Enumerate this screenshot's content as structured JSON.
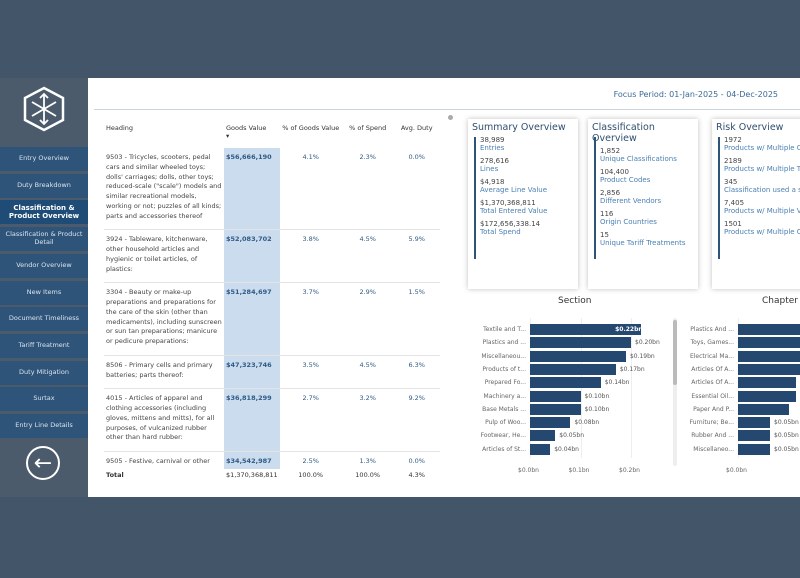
{
  "nav": {
    "items": [
      "Entry Overview",
      "Duty Breakdown",
      "Classification & Product Overview",
      "Classification & Product Detail",
      "Vendor Overview",
      "New Items",
      "Document Timeliness",
      "Tariff Treatment",
      "Duty Mitigation",
      "Surtax",
      "Entry Line Details"
    ],
    "active": 2,
    "back_icon": "arrow-left-circle-icon"
  },
  "header": {
    "focus_period": "Focus Period: 01-Jan-2025 - 04-Dec-2025"
  },
  "table": {
    "columns": [
      "Heading",
      "Goods Value",
      "% of Goods Value",
      "% of Spend",
      "Avg. Duty"
    ],
    "rows": [
      [
        "9503 - Tricycles, scooters, pedal cars and similar wheeled toys; dolls' carriages; dolls, other toys; reduced-scale (\"scale\") models and similar recreational models, working or not; puzzles of all kinds; parts and accessories thereof",
        "$56,666,190",
        "4.1%",
        "2.3%",
        "0.0%"
      ],
      [
        "3924 - Tableware, kitchenware, other household articles and hygienic or toilet articles, of plastics:",
        "$52,083,702",
        "3.8%",
        "4.5%",
        "5.9%"
      ],
      [
        "3304 - Beauty or make-up preparations and preparations for the care of the skin (other than medicaments), including sunscreen or sun tan preparations; manicure or pedicure preparations:",
        "$51,284,697",
        "3.7%",
        "2.9%",
        "1.5%"
      ],
      [
        "8506 - Primary cells and primary batteries; parts thereof:",
        "$47,323,746",
        "3.5%",
        "4.5%",
        "6.3%"
      ],
      [
        "4015 - Articles of apparel and clothing accessories (including gloves, mittens and mitts), for all purposes, of vulcanized rubber other than hard rubber:",
        "$36,818,299",
        "2.7%",
        "3.2%",
        "9.2%"
      ],
      [
        "9505 - Festive, carnival or other",
        "$34,542,987",
        "2.5%",
        "1.3%",
        "0.0%"
      ]
    ],
    "total": [
      "Total",
      "$1,370,368,811",
      "100.0%",
      "100.0%",
      "4.3%"
    ]
  },
  "cards": [
    {
      "title": "Summary Overview",
      "items": [
        {
          "v": "38,989",
          "l": "Entries"
        },
        {
          "v": "278,616",
          "l": "Lines"
        },
        {
          "v": "$4,918",
          "l": "Average Line Value"
        },
        {
          "v": "$1,370,368,811",
          "l": "Total Entered Value"
        },
        {
          "v": "$172,656,338.14",
          "l": "Total Spend"
        }
      ]
    },
    {
      "title": "Classification Overview",
      "items": [
        {
          "v": "1,852",
          "l": "Unique Classifications"
        },
        {
          "v": "104,400",
          "l": "Product Codes"
        },
        {
          "v": "2,856",
          "l": "Different Vendors"
        },
        {
          "v": "116",
          "l": "Origin Countries"
        },
        {
          "v": "15",
          "l": "Unique Tariff Treatments"
        }
      ]
    },
    {
      "title": "Risk Overview",
      "items": [
        {
          "v": "1972",
          "l": "Products w/ Multiple C"
        },
        {
          "v": "2189",
          "l": "Products w/ Multiple T"
        },
        {
          "v": "345",
          "l": "Classification used a s"
        },
        {
          "v": "7,405",
          "l": "Products w/ Multiple V"
        },
        {
          "v": "1501",
          "l": "Products w/ Multiple C"
        }
      ]
    }
  ],
  "chart_data": [
    {
      "type": "bar",
      "orientation": "horizontal",
      "title": "Section",
      "categories": [
        "Textile and T...",
        "Plastics and ...",
        "Miscellaneou...",
        "Products of t...",
        "Prepared Fo...",
        "Machinery a...",
        "Base Metals ...",
        "Pulp of Woo...",
        "Footwear, He...",
        "Articles of St..."
      ],
      "values": [
        0.22,
        0.2,
        0.19,
        0.17,
        0.14,
        0.1,
        0.1,
        0.08,
        0.05,
        0.04
      ],
      "labels": [
        "$0.22bn",
        "$0.20bn",
        "$0.19bn",
        "$0.17bn",
        "$0.14bn",
        "$0.10bn",
        "$0.10bn",
        "$0.08bn",
        "$0.05bn",
        "$0.04bn"
      ],
      "ticks": [
        "$0.0bn",
        "$0.1bn",
        "$0.2bn"
      ],
      "xlim": [
        0,
        0.23
      ],
      "grid": true
    },
    {
      "type": "bar",
      "orientation": "horizontal",
      "title": "Chapter",
      "categories": [
        "Plastics And ...",
        "Toys, Games...",
        "Electrical Ma...",
        "Articles Of A...",
        "Articles Of A...",
        "Essential Oil...",
        "Paper And P...",
        "Furniture; Be...",
        "Rubber And ...",
        "Miscellaneo..."
      ],
      "values": [
        0.13,
        0.13,
        0.1,
        0.1,
        0.09,
        0.09,
        0.08,
        0.05,
        0.05,
        0.05
      ],
      "labels": [
        "",
        "",
        "",
        "",
        "",
        "",
        "",
        "$0.05bn",
        "$0.05bn",
        "$0.05bn"
      ],
      "ticks": [
        "$0.0bn"
      ],
      "xlim": [
        0,
        0.2
      ],
      "grid": true
    }
  ],
  "colors": {
    "bar": "#24486f",
    "nav": "#2e5479",
    "highlight": "#cadcee"
  }
}
